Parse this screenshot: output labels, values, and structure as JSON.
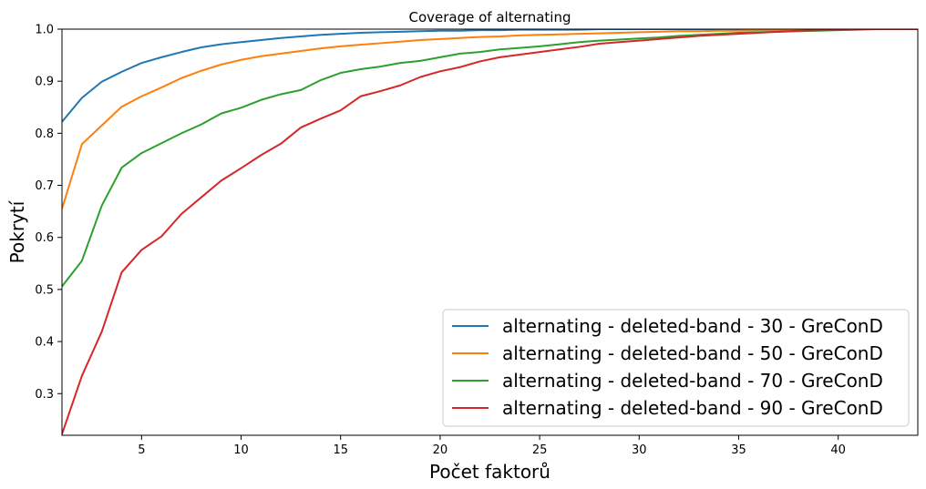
{
  "chart_data": {
    "type": "line",
    "title": "Coverage of alternating",
    "xlabel": "Počet faktorů",
    "ylabel": "Pokrytí",
    "xlim": [
      1,
      44
    ],
    "ylim": [
      0.22,
      1.0
    ],
    "xticks": [
      5,
      10,
      15,
      20,
      25,
      30,
      35,
      40
    ],
    "yticks": [
      0.3,
      0.4,
      0.5,
      0.6,
      0.7,
      0.8,
      0.9,
      1.0
    ],
    "ytick_labels": [
      "0.3",
      "0.4",
      "0.5",
      "0.6",
      "0.7",
      "0.8",
      "0.9",
      "1.0"
    ],
    "grid": false,
    "legend_position": "lower-right",
    "x": [
      1,
      2,
      3,
      4,
      5,
      6,
      7,
      8,
      9,
      10,
      11,
      12,
      13,
      14,
      15,
      16,
      17,
      18,
      19,
      20,
      21,
      22,
      23,
      24,
      25,
      26,
      27,
      28,
      29,
      30,
      31,
      32,
      33,
      34,
      35,
      36,
      37,
      38,
      39,
      40,
      41,
      42,
      43,
      44
    ],
    "series": [
      {
        "name": "alternating - deleted-band - 30 - GreConD",
        "color": "#1f77b4",
        "values": [
          0.822,
          0.868,
          0.899,
          0.918,
          0.935,
          0.946,
          0.956,
          0.965,
          0.971,
          0.975,
          0.979,
          0.983,
          0.986,
          0.989,
          0.991,
          0.993,
          0.994,
          0.995,
          0.996,
          0.997,
          0.997,
          0.998,
          0.998,
          0.999,
          0.999,
          0.999,
          0.999,
          1.0,
          1.0,
          1.0,
          1.0,
          1.0,
          1.0,
          1.0,
          1.0,
          1.0,
          1.0,
          1.0,
          1.0,
          1.0,
          1.0,
          1.0,
          1.0,
          1.0
        ]
      },
      {
        "name": "alternating - deleted-band - 50 - GreConD",
        "color": "#ff7f0e",
        "values": [
          0.655,
          0.779,
          0.815,
          0.851,
          0.871,
          0.888,
          0.906,
          0.92,
          0.932,
          0.941,
          0.948,
          0.953,
          0.958,
          0.963,
          0.967,
          0.97,
          0.973,
          0.976,
          0.979,
          0.981,
          0.983,
          0.985,
          0.986,
          0.988,
          0.989,
          0.99,
          0.991,
          0.992,
          0.993,
          0.994,
          0.995,
          0.996,
          0.996,
          0.997,
          0.997,
          0.998,
          0.998,
          0.999,
          0.999,
          0.999,
          1.0,
          1.0,
          1.0,
          1.0
        ]
      },
      {
        "name": "alternating - deleted-band - 70 - GreConD",
        "color": "#2ca02c",
        "values": [
          0.506,
          0.555,
          0.661,
          0.734,
          0.762,
          0.781,
          0.8,
          0.817,
          0.838,
          0.849,
          0.864,
          0.875,
          0.883,
          0.902,
          0.916,
          0.923,
          0.928,
          0.935,
          0.939,
          0.946,
          0.953,
          0.956,
          0.961,
          0.964,
          0.967,
          0.971,
          0.975,
          0.978,
          0.98,
          0.982,
          0.984,
          0.987,
          0.989,
          0.991,
          0.993,
          0.994,
          0.995,
          0.996,
          0.997,
          0.998,
          0.999,
          1.0,
          1.0,
          1.0
        ]
      },
      {
        "name": "alternating - deleted-band - 90 - GreConD",
        "color": "#d62728",
        "values": [
          0.222,
          0.334,
          0.419,
          0.533,
          0.576,
          0.602,
          0.645,
          0.677,
          0.709,
          0.733,
          0.758,
          0.78,
          0.811,
          0.828,
          0.844,
          0.871,
          0.881,
          0.892,
          0.908,
          0.919,
          0.927,
          0.938,
          0.946,
          0.951,
          0.956,
          0.961,
          0.966,
          0.972,
          0.975,
          0.978,
          0.981,
          0.984,
          0.987,
          0.989,
          0.991,
          0.993,
          0.995,
          0.997,
          0.998,
          0.999,
          1.0,
          1.0,
          1.0,
          1.0
        ]
      }
    ]
  }
}
